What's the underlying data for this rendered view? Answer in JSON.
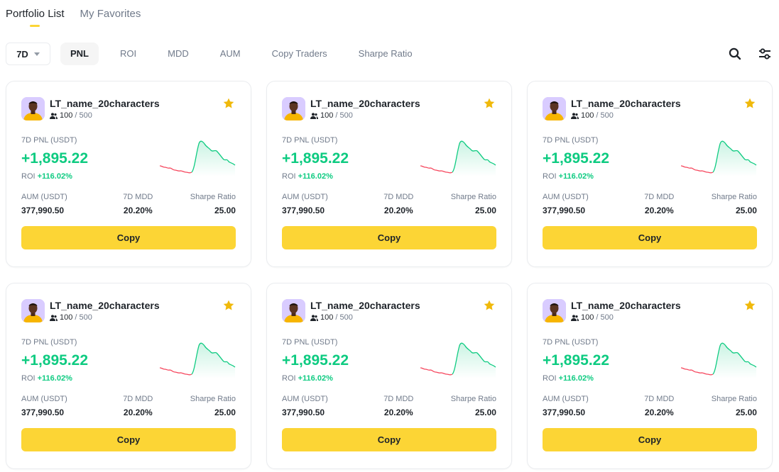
{
  "tabs": [
    {
      "label": "Portfolio List",
      "active": true
    },
    {
      "label": "My Favorites",
      "active": false
    }
  ],
  "filters": {
    "period": "7D",
    "sort_tabs": [
      {
        "label": "PNL",
        "active": true
      },
      {
        "label": "ROI",
        "active": false
      },
      {
        "label": "MDD",
        "active": false
      },
      {
        "label": "AUM",
        "active": false
      },
      {
        "label": "Copy Traders",
        "active": false
      },
      {
        "label": "Sharpe Ratio",
        "active": false
      }
    ]
  },
  "icons": {
    "search": "search-icon",
    "filter": "sliders-icon",
    "favorite": "star-icon",
    "copiers": "users-icon"
  },
  "colors": {
    "accent": "#fcd535",
    "profit": "#0ecb81",
    "loss": "#f6465d",
    "star": "#f0b90b"
  },
  "cards": [
    {
      "name": "LT_name_20characters",
      "copiers": "100",
      "copiers_max": "/ 500",
      "pnl_label": "7D PNL (USDT)",
      "pnl_value": "+1,895.22",
      "roi_label": "ROI",
      "roi_value": "+116.02%",
      "aum_label": "AUM (USDT)",
      "aum_value": "377,990.50",
      "mdd_label": "7D MDD",
      "mdd_value": "20.20%",
      "sharpe_label": "Sharpe Ratio",
      "sharpe_value": "25.00",
      "button": "Copy",
      "favorite": true
    },
    {
      "name": "LT_name_20characters",
      "copiers": "100",
      "copiers_max": "/ 500",
      "pnl_label": "7D PNL (USDT)",
      "pnl_value": "+1,895.22",
      "roi_label": "ROI",
      "roi_value": "+116.02%",
      "aum_label": "AUM (USDT)",
      "aum_value": "377,990.50",
      "mdd_label": "7D MDD",
      "mdd_value": "20.20%",
      "sharpe_label": "Sharpe Ratio",
      "sharpe_value": "25.00",
      "button": "Copy",
      "favorite": true
    },
    {
      "name": "LT_name_20characters",
      "copiers": "100",
      "copiers_max": "/ 500",
      "pnl_label": "7D PNL (USDT)",
      "pnl_value": "+1,895.22",
      "roi_label": "ROI",
      "roi_value": "+116.02%",
      "aum_label": "AUM (USDT)",
      "aum_value": "377,990.50",
      "mdd_label": "7D MDD",
      "mdd_value": "20.20%",
      "sharpe_label": "Sharpe Ratio",
      "sharpe_value": "25.00",
      "button": "Copy",
      "favorite": true
    },
    {
      "name": "LT_name_20characters",
      "copiers": "100",
      "copiers_max": "/ 500",
      "pnl_label": "7D PNL (USDT)",
      "pnl_value": "+1,895.22",
      "roi_label": "ROI",
      "roi_value": "+116.02%",
      "aum_label": "AUM (USDT)",
      "aum_value": "377,990.50",
      "mdd_label": "7D MDD",
      "mdd_value": "20.20%",
      "sharpe_label": "Sharpe Ratio",
      "sharpe_value": "25.00",
      "button": "Copy",
      "favorite": true
    },
    {
      "name": "LT_name_20characters",
      "copiers": "100",
      "copiers_max": "/ 500",
      "pnl_label": "7D PNL (USDT)",
      "pnl_value": "+1,895.22",
      "roi_label": "ROI",
      "roi_value": "+116.02%",
      "aum_label": "AUM (USDT)",
      "aum_value": "377,990.50",
      "mdd_label": "7D MDD",
      "mdd_value": "20.20%",
      "sharpe_label": "Sharpe Ratio",
      "sharpe_value": "25.00",
      "button": "Copy",
      "favorite": true
    },
    {
      "name": "LT_name_20characters",
      "copiers": "100",
      "copiers_max": "/ 500",
      "pnl_label": "7D PNL (USDT)",
      "pnl_value": "+1,895.22",
      "roi_label": "ROI",
      "roi_value": "+116.02%",
      "aum_label": "AUM (USDT)",
      "aum_value": "377,990.50",
      "mdd_label": "7D MDD",
      "mdd_value": "20.20%",
      "sharpe_label": "Sharpe Ratio",
      "sharpe_value": "25.00",
      "button": "Copy",
      "favorite": true
    }
  ]
}
